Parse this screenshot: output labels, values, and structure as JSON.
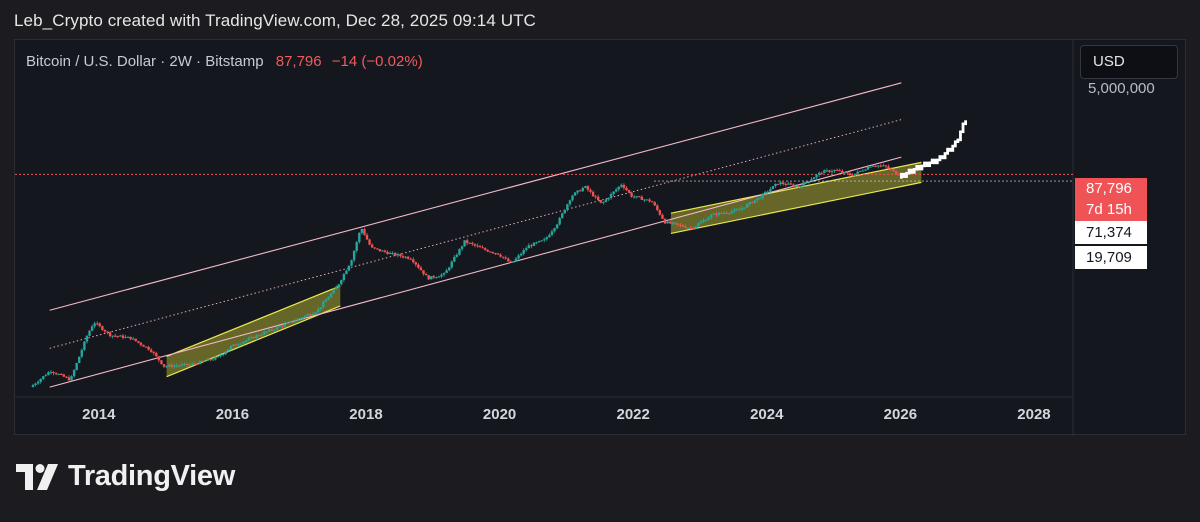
{
  "attribution": "Leb_Crypto created with TradingView.com, Dec 28, 2025 09:14 UTC",
  "legend": {
    "symbol": "Bitcoin / U.S. Dollar · 2W · Bitstamp",
    "price": "87,796",
    "change": "−14 (−0.02%)"
  },
  "currency_button": "USD",
  "price_axis": {
    "top_label": "5,000,000",
    "last_price_tag": "87,796",
    "countdown_tag": "7d 15h",
    "level_tags": [
      "71,374",
      "19,709"
    ]
  },
  "colors": {
    "background": "#15171f",
    "up_candle": "#26a69a",
    "down_candle": "#ef5350",
    "channel_line": "#f4b8c8",
    "highlight_box": "#c8c832",
    "projection": "#ffffff",
    "last_price": "#f05356"
  },
  "chart_data": {
    "type": "candlestick",
    "scale": "log",
    "interval": "2W",
    "x_ticks": [
      "2014",
      "2016",
      "2018",
      "2020",
      "2022",
      "2024",
      "2026",
      "2028"
    ],
    "x_range": [
      2013.0,
      2028.3
    ],
    "y_range": [
      100,
      5000000
    ],
    "last_price": 87796,
    "price_levels": [
      71374,
      19709
    ],
    "regression_channel": {
      "upper": [
        [
          2013.25,
          1300
        ],
        [
          2026.0,
          1500000
        ]
      ],
      "middle": [
        [
          2013.25,
          400
        ],
        [
          2026.0,
          480000
        ]
      ],
      "lower": [
        [
          2013.25,
          120
        ],
        [
          2026.0,
          150000
        ]
      ]
    },
    "highlight_zones": [
      {
        "start": 2015.0,
        "end": 2017.6
      },
      {
        "start": 2022.55,
        "end": 2026.3
      }
    ],
    "price_path": [
      [
        2013.0,
        120
      ],
      [
        2013.3,
        200
      ],
      [
        2013.6,
        150
      ],
      [
        2013.85,
        600
      ],
      [
        2013.95,
        900
      ],
      [
        2014.2,
        600
      ],
      [
        2014.5,
        550
      ],
      [
        2014.8,
        380
      ],
      [
        2015.0,
        230
      ],
      [
        2015.4,
        240
      ],
      [
        2015.8,
        300
      ],
      [
        2016.0,
        420
      ],
      [
        2016.5,
        650
      ],
      [
        2016.9,
        900
      ],
      [
        2017.3,
        1300
      ],
      [
        2017.6,
        2800
      ],
      [
        2017.8,
        6000
      ],
      [
        2017.95,
        17000
      ],
      [
        2018.1,
        9000
      ],
      [
        2018.4,
        7500
      ],
      [
        2018.7,
        6500
      ],
      [
        2018.95,
        3500
      ],
      [
        2019.2,
        4000
      ],
      [
        2019.5,
        11000
      ],
      [
        2019.8,
        8500
      ],
      [
        2020.0,
        7500
      ],
      [
        2020.2,
        5500
      ],
      [
        2020.45,
        9500
      ],
      [
        2020.7,
        11500
      ],
      [
        2020.9,
        20000
      ],
      [
        2021.1,
        45000
      ],
      [
        2021.3,
        60000
      ],
      [
        2021.55,
        35000
      ],
      [
        2021.85,
        65000
      ],
      [
        2022.0,
        45000
      ],
      [
        2022.3,
        38000
      ],
      [
        2022.5,
        20000
      ],
      [
        2022.9,
        16500
      ],
      [
        2023.2,
        25000
      ],
      [
        2023.6,
        29000
      ],
      [
        2023.9,
        42000
      ],
      [
        2024.2,
        68000
      ],
      [
        2024.5,
        60000
      ],
      [
        2024.85,
        95000
      ],
      [
        2025.05,
        100000
      ],
      [
        2025.3,
        85000
      ],
      [
        2025.6,
        118000
      ],
      [
        2025.8,
        112000
      ],
      [
        2025.99,
        87796
      ]
    ],
    "projection_path": [
      [
        2026.0,
        80000
      ],
      [
        2026.2,
        100000
      ],
      [
        2026.4,
        120000
      ],
      [
        2026.6,
        140000
      ],
      [
        2026.85,
        230000
      ],
      [
        2027.0,
        480000
      ]
    ]
  }
}
